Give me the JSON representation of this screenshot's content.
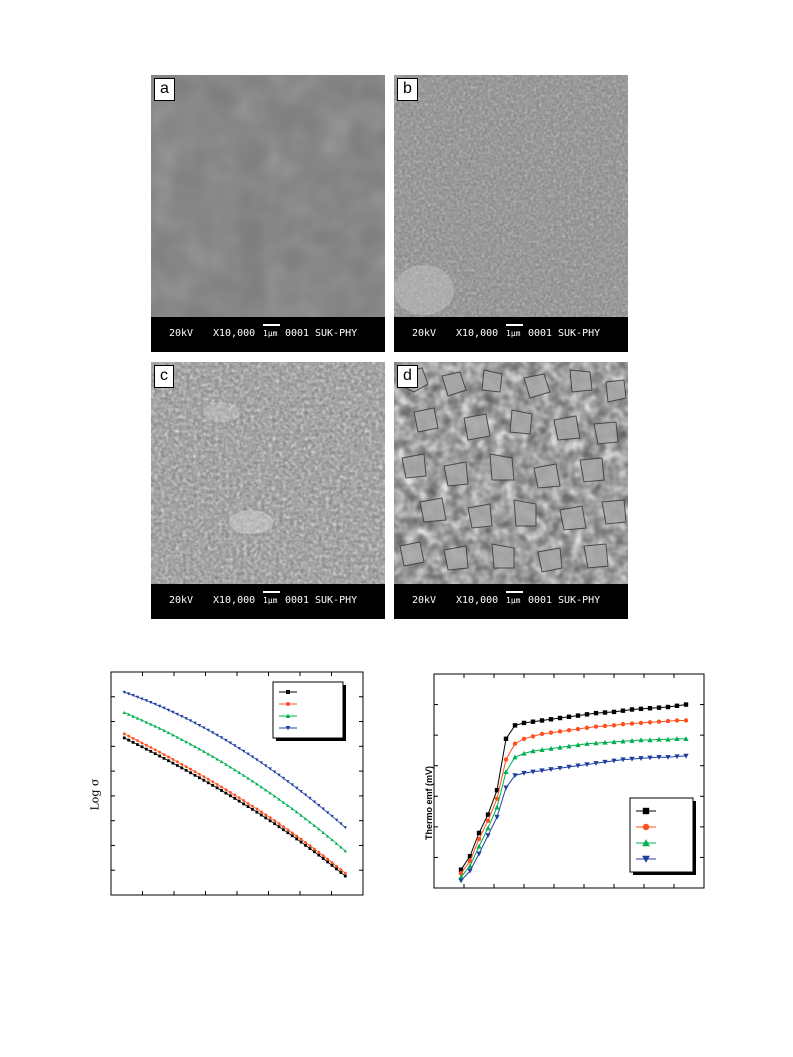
{
  "sem_panels": [
    {
      "label": "a",
      "voltage": "20kV",
      "magnification": "X10,000",
      "scale": "1µm",
      "code": "0001",
      "lab": "SUK-PHY"
    },
    {
      "label": "b",
      "voltage": "20kV",
      "magnification": "X10,000",
      "scale": "1µm",
      "code": "0001",
      "lab": "SUK-PHY"
    },
    {
      "label": "c",
      "voltage": "20kV",
      "magnification": "X10,000",
      "scale": "1µm",
      "code": "0001",
      "lab": "SUK-PHY"
    },
    {
      "label": "d",
      "voltage": "20kV",
      "magnification": "X10,000",
      "scale": "1µm",
      "code": "0001",
      "lab": "SUK-PHY"
    }
  ],
  "chart_data": [
    {
      "type": "line",
      "title": "",
      "xlabel": "",
      "ylabel": "Log σ",
      "grid": false,
      "legend_position": "top-right",
      "x": [
        0,
        1,
        2,
        3,
        4,
        5,
        6,
        7,
        8,
        9,
        10,
        11,
        12,
        13,
        14,
        15,
        16,
        17,
        18,
        19,
        20,
        21,
        22,
        23,
        24,
        25,
        26,
        27,
        28,
        29,
        30,
        31,
        32,
        33,
        34,
        35,
        36,
        37,
        38,
        39,
        40,
        41,
        42,
        43,
        44,
        45,
        46,
        47,
        48,
        49,
        50
      ],
      "series": [
        {
          "color": "#000000",
          "marker": "square",
          "values": [
            15.5,
            15.28,
            15.06,
            14.84,
            14.62,
            14.39,
            14.17,
            13.94,
            13.71,
            13.48,
            13.25,
            13.01,
            12.78,
            12.54,
            12.3,
            12.06,
            11.81,
            11.57,
            11.32,
            11.07,
            10.82,
            10.57,
            10.31,
            10.05,
            9.79,
            9.53,
            9.26,
            8.99,
            8.72,
            8.45,
            8.17,
            7.89,
            7.61,
            7.32,
            7.03,
            6.74,
            6.44,
            6.14,
            5.84,
            5.53,
            5.22,
            4.9,
            4.58,
            4.26,
            3.93,
            3.6,
            3.26,
            2.92,
            2.57,
            2.22,
            1.87
          ]
        },
        {
          "color": "#ff5020",
          "marker": "circle",
          "values": [
            15.9,
            15.68,
            15.45,
            15.23,
            15.0,
            14.78,
            14.55,
            14.32,
            14.09,
            13.85,
            13.62,
            13.38,
            13.14,
            12.9,
            12.66,
            12.42,
            12.17,
            11.92,
            11.67,
            11.42,
            11.17,
            10.91,
            10.65,
            10.39,
            10.12,
            9.86,
            9.59,
            9.32,
            9.04,
            8.77,
            8.49,
            8.21,
            7.92,
            7.63,
            7.34,
            7.04,
            6.74,
            6.44,
            6.13,
            5.82,
            5.51,
            5.19,
            4.87,
            4.54,
            4.21,
            3.88,
            3.54,
            3.2,
            2.85,
            2.5,
            2.15
          ]
        },
        {
          "color": "#00b050",
          "marker": "triangle-up",
          "values": [
            18.0,
            17.82,
            17.63,
            17.44,
            17.25,
            17.05,
            16.85,
            16.65,
            16.44,
            16.23,
            16.01,
            15.79,
            15.57,
            15.34,
            15.11,
            14.88,
            14.64,
            14.4,
            14.16,
            13.91,
            13.66,
            13.41,
            13.15,
            12.89,
            12.62,
            12.35,
            12.08,
            11.8,
            11.52,
            11.24,
            10.95,
            10.66,
            10.36,
            10.06,
            9.76,
            9.45,
            9.14,
            8.83,
            8.51,
            8.19,
            7.86,
            7.53,
            7.19,
            6.85,
            6.51,
            6.16,
            5.8,
            5.45,
            5.08,
            4.72,
            4.35
          ]
        },
        {
          "color": "#1f3fa0",
          "marker": "triangle-down",
          "values": [
            20.0,
            19.85,
            19.69,
            19.52,
            19.35,
            19.18,
            19.0,
            18.82,
            18.63,
            18.44,
            18.24,
            18.04,
            17.83,
            17.62,
            17.41,
            17.19,
            16.96,
            16.73,
            16.5,
            16.26,
            16.02,
            15.77,
            15.52,
            15.26,
            15.0,
            14.73,
            14.46,
            14.19,
            13.91,
            13.63,
            13.34,
            13.05,
            12.75,
            12.45,
            12.14,
            11.83,
            11.52,
            11.2,
            10.87,
            10.55,
            10.21,
            9.88,
            9.54,
            9.19,
            8.84,
            8.49,
            8.13,
            7.77,
            7.4,
            7.03,
            6.65
          ]
        }
      ],
      "ylim": [
        0,
        22
      ],
      "xlim": [
        -3,
        54
      ]
    },
    {
      "type": "line",
      "title": "",
      "xlabel": "",
      "ylabel": "Thermo emf (mV)",
      "grid": false,
      "legend_position": "bottom-right",
      "x": [
        0,
        1,
        2,
        3,
        4,
        5,
        6,
        7,
        8,
        9,
        10,
        11,
        12,
        13,
        14,
        15,
        16,
        17,
        18,
        19,
        20,
        21,
        22,
        23,
        24,
        25
      ],
      "series": [
        {
          "color": "#000000",
          "marker": "square",
          "values": [
            1.5,
            2.6,
            4.5,
            6.0,
            8.0,
            12.2,
            13.3,
            13.5,
            13.6,
            13.7,
            13.8,
            13.9,
            14.0,
            14.1,
            14.2,
            14.3,
            14.35,
            14.4,
            14.5,
            14.6,
            14.65,
            14.7,
            14.75,
            14.8,
            14.9,
            15.0
          ]
        },
        {
          "color": "#ff5020",
          "marker": "circle",
          "values": [
            1.2,
            2.2,
            4.0,
            5.5,
            7.3,
            10.5,
            11.8,
            12.2,
            12.4,
            12.6,
            12.7,
            12.8,
            12.9,
            13.0,
            13.1,
            13.2,
            13.25,
            13.3,
            13.4,
            13.45,
            13.5,
            13.55,
            13.6,
            13.65,
            13.7,
            13.7
          ]
        },
        {
          "color": "#00b050",
          "marker": "triangle-up",
          "values": [
            0.9,
            1.8,
            3.4,
            4.9,
            6.6,
            9.5,
            10.7,
            11.0,
            11.2,
            11.3,
            11.4,
            11.5,
            11.6,
            11.7,
            11.8,
            11.85,
            11.9,
            11.95,
            12.0,
            12.05,
            12.1,
            12.1,
            12.15,
            12.15,
            12.2,
            12.2
          ]
        },
        {
          "color": "#1f3fa0",
          "marker": "triangle-down",
          "values": [
            0.6,
            1.4,
            2.8,
            4.3,
            5.8,
            8.2,
            9.2,
            9.4,
            9.5,
            9.6,
            9.7,
            9.8,
            9.9,
            10.0,
            10.1,
            10.2,
            10.3,
            10.4,
            10.5,
            10.55,
            10.6,
            10.65,
            10.7,
            10.7,
            10.75,
            10.8
          ]
        }
      ],
      "ylim": [
        0,
        17.5
      ],
      "xlim": [
        -3,
        27
      ]
    }
  ]
}
